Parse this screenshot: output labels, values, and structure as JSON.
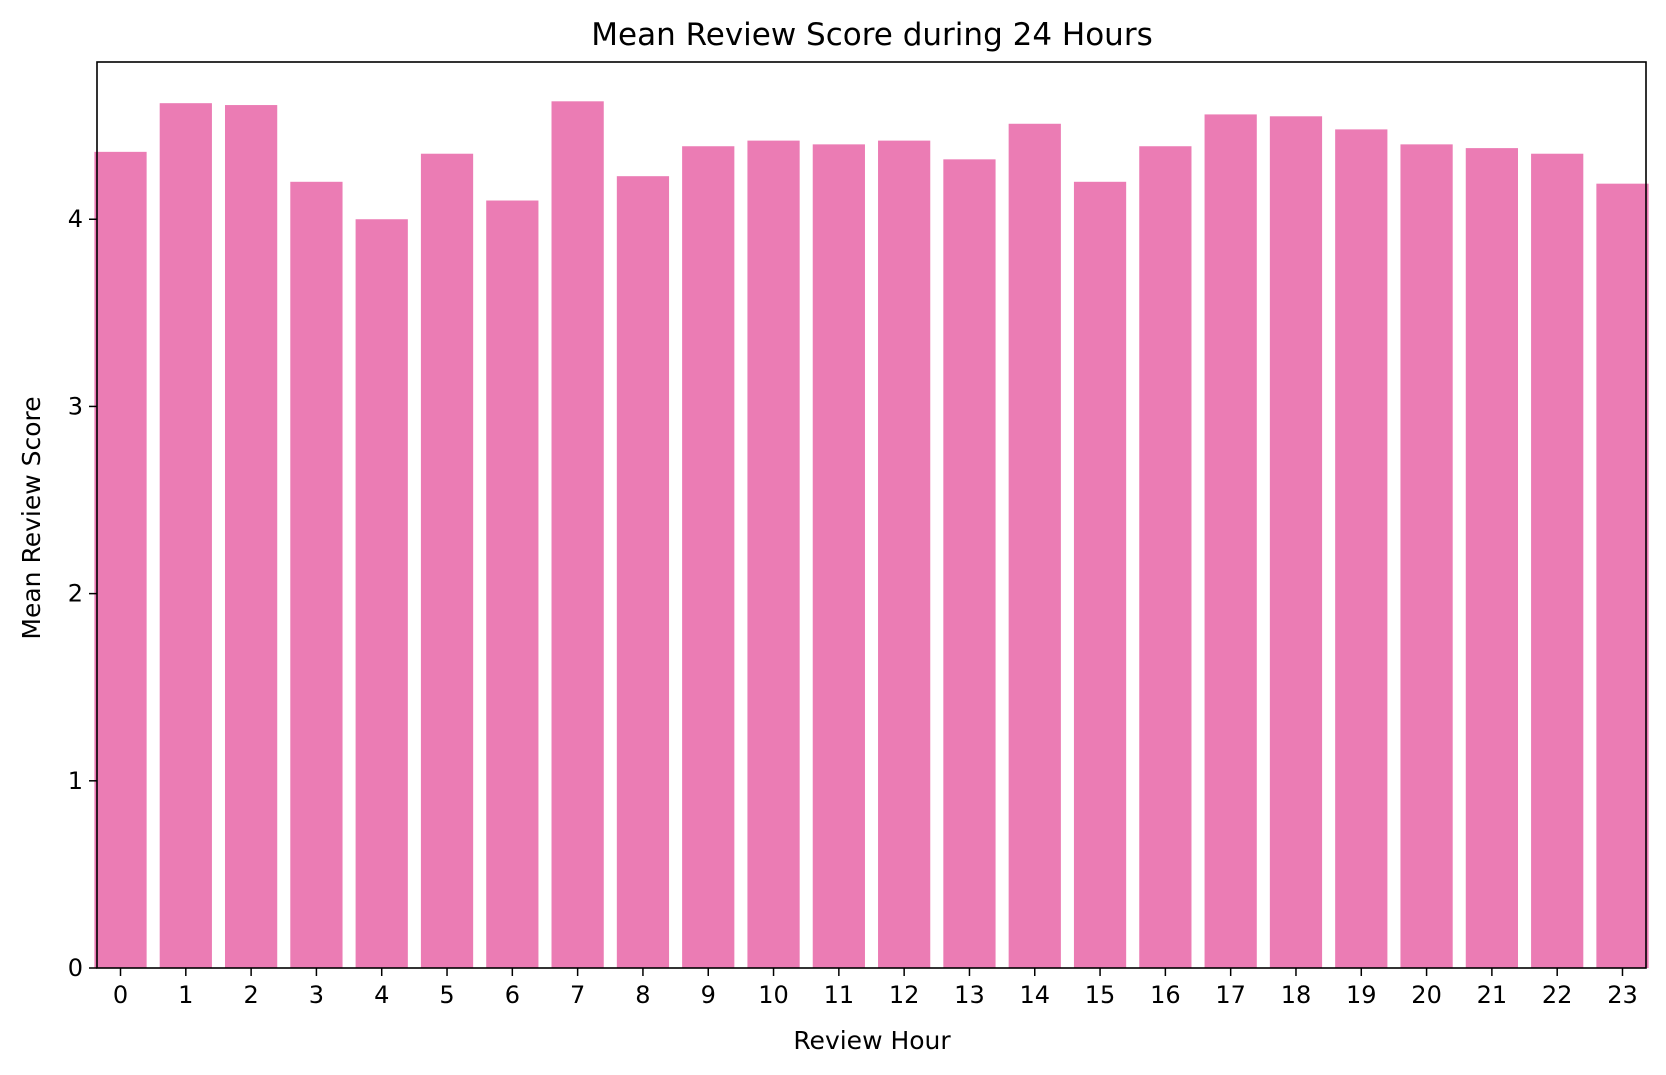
{
  "chart_data": {
    "type": "bar",
    "title": "Mean Review Score during 24 Hours",
    "xlabel": "Review Hour",
    "ylabel": "Mean Review Score",
    "categories": [
      "0",
      "1",
      "2",
      "3",
      "4",
      "5",
      "6",
      "7",
      "8",
      "9",
      "10",
      "11",
      "12",
      "13",
      "14",
      "15",
      "16",
      "17",
      "18",
      "19",
      "20",
      "21",
      "22",
      "23"
    ],
    "values": [
      4.36,
      4.62,
      4.61,
      4.2,
      4.0,
      4.35,
      4.1,
      4.63,
      4.23,
      4.39,
      4.42,
      4.4,
      4.42,
      4.32,
      4.51,
      4.2,
      4.39,
      4.56,
      4.55,
      4.48,
      4.4,
      4.38,
      4.35,
      4.19
    ],
    "ylim": [
      0,
      4.84
    ],
    "yticks": [
      0,
      1,
      2,
      3,
      4
    ],
    "grid": false,
    "bar_color": "#eb7cb4",
    "axis_color": "#000000"
  }
}
